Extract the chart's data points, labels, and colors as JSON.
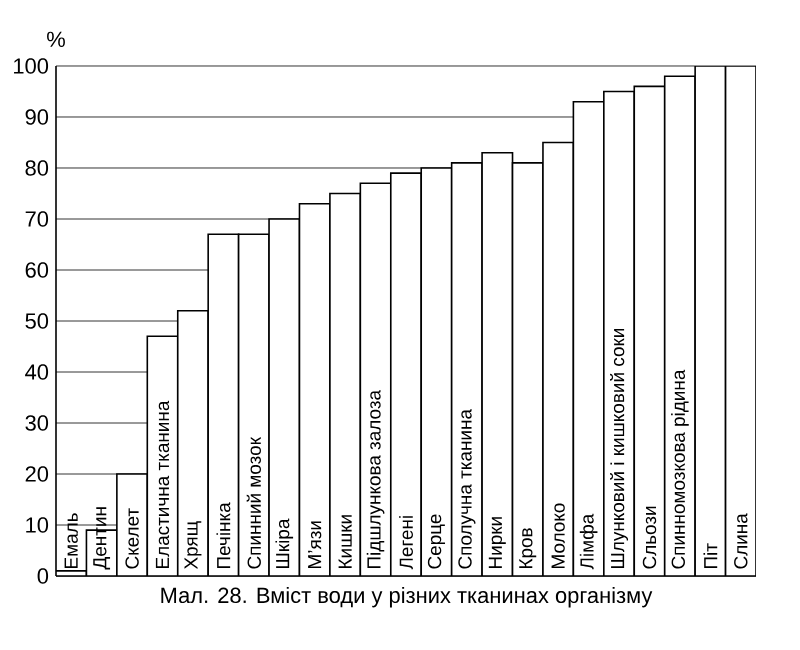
{
  "chart_data": {
    "type": "bar",
    "title": "Мал. 28. Вміст води у різних тканинах організму",
    "ylabel": "%",
    "categories": [
      "Емаль",
      "Дентин",
      "Скелет",
      "Еластична тканина",
      "Хрящ",
      "Печінка",
      "Спинний мозок",
      "Шкіра",
      "М’язи",
      "Кишки",
      "Підшлункова залоза",
      "Легені",
      "Серце",
      "Сполучна тканина",
      "Нирки",
      "Кров",
      "Молоко",
      "Лімфа",
      "Шлунковий і кишковий соки",
      "Сльози",
      "Спинномозкова рідина",
      "Піт",
      "Слина"
    ],
    "values": [
      1,
      9,
      20,
      47,
      52,
      67,
      67,
      70,
      73,
      75,
      77,
      79,
      80,
      81,
      83,
      81,
      85,
      93,
      95,
      96,
      98,
      100,
      100
    ],
    "color": "#ffffff",
    "ylim": [
      0,
      100
    ],
    "yticks": [
      0,
      10,
      20,
      30,
      40,
      50,
      60,
      70,
      80,
      90,
      100
    ],
    "grid": "y"
  }
}
